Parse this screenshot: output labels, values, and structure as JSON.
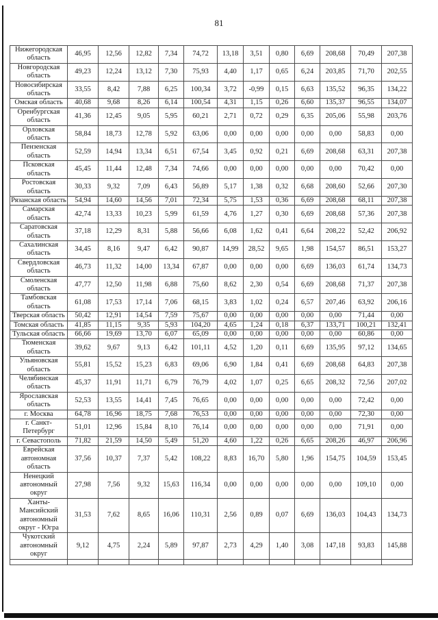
{
  "page": {
    "number": "81"
  },
  "colors": {
    "ink": "#1a1a1a",
    "border": "#4a4a4a"
  },
  "table": {
    "rows": [
      {
        "region": "Нижегородская область",
        "values": [
          "46,95",
          "12,56",
          "12,82",
          "7,34",
          "74,72",
          "13,18",
          "3,51",
          "0,80",
          "6,69",
          "208,68",
          "70,49",
          "207,38"
        ]
      },
      {
        "region": "Новгородская область",
        "values": [
          "49,23",
          "12,24",
          "13,12",
          "7,30",
          "75,93",
          "4,40",
          "1,17",
          "0,65",
          "6,24",
          "203,85",
          "71,70",
          "202,55"
        ]
      },
      {
        "region": "Новосибирская область",
        "values": [
          "33,55",
          "8,42",
          "7,88",
          "6,25",
          "100,34",
          "3,72",
          "-0,99",
          "0,15",
          "6,63",
          "135,52",
          "96,35",
          "134,22"
        ]
      },
      {
        "region": "Омская область",
        "values": [
          "40,68",
          "9,68",
          "8,26",
          "6,14",
          "100,54",
          "4,31",
          "1,15",
          "0,26",
          "6,60",
          "135,37",
          "96,55",
          "134,07"
        ]
      },
      {
        "region": "Оренбургская область",
        "values": [
          "41,36",
          "12,45",
          "9,05",
          "5,95",
          "60,21",
          "2,71",
          "0,72",
          "0,29",
          "6,35",
          "205,06",
          "55,98",
          "203,76"
        ]
      },
      {
        "region": "Орловская область",
        "values": [
          "58,84",
          "18,73",
          "12,78",
          "5,92",
          "63,06",
          "0,00",
          "0,00",
          "0,00",
          "0,00",
          "0,00",
          "58,83",
          "0,00"
        ]
      },
      {
        "region": "Пензенская область",
        "values": [
          "52,59",
          "14,94",
          "13,34",
          "6,51",
          "67,54",
          "3,45",
          "0,92",
          "0,21",
          "6,69",
          "208,68",
          "63,31",
          "207,38"
        ]
      },
      {
        "region": "Псковская область",
        "values": [
          "45,45",
          "11,44",
          "12,48",
          "7,34",
          "74,66",
          "0,00",
          "0,00",
          "0,00",
          "0,00",
          "0,00",
          "70,42",
          "0,00"
        ]
      },
      {
        "region": "Ростовская область",
        "values": [
          "30,33",
          "9,32",
          "7,09",
          "6,43",
          "56,89",
          "5,17",
          "1,38",
          "0,32",
          "6,68",
          "208,60",
          "52,66",
          "207,30"
        ]
      },
      {
        "region": "Рязанская область",
        "values": [
          "54,94",
          "14,60",
          "14,56",
          "7,01",
          "72,34",
          "5,75",
          "1,53",
          "0,36",
          "6,69",
          "208,68",
          "68,11",
          "207,38"
        ]
      },
      {
        "region": "Самарская область",
        "values": [
          "42,74",
          "13,33",
          "10,23",
          "5,99",
          "61,59",
          "4,76",
          "1,27",
          "0,30",
          "6,69",
          "208,68",
          "57,36",
          "207,38"
        ]
      },
      {
        "region": "Саратовская область",
        "values": [
          "37,18",
          "12,29",
          "8,31",
          "5,88",
          "56,66",
          "6,08",
          "1,62",
          "0,41",
          "6,64",
          "208,22",
          "52,42",
          "206,92"
        ]
      },
      {
        "region": "Сахалинская область",
        "values": [
          "34,45",
          "8,16",
          "9,47",
          "6,42",
          "90,87",
          "14,99",
          "28,52",
          "9,65",
          "1,98",
          "154,57",
          "86,51",
          "153,27"
        ]
      },
      {
        "region": "Свердловская область",
        "values": [
          "46,73",
          "11,32",
          "14,00",
          "13,34",
          "67,87",
          "0,00",
          "0,00",
          "0,00",
          "6,69",
          "136,03",
          "61,74",
          "134,73"
        ]
      },
      {
        "region": "Смоленская область",
        "values": [
          "47,77",
          "12,50",
          "11,98",
          "6,88",
          "75,60",
          "8,62",
          "2,30",
          "0,54",
          "6,69",
          "208,68",
          "71,37",
          "207,38"
        ]
      },
      {
        "region": "Тамбовская область",
        "values": [
          "61,08",
          "17,53",
          "17,14",
          "7,06",
          "68,15",
          "3,83",
          "1,02",
          "0,24",
          "6,57",
          "207,46",
          "63,92",
          "206,16"
        ]
      },
      {
        "region": "Тверская область",
        "values": [
          "50,42",
          "12,91",
          "14,54",
          "7,59",
          "75,67",
          "0,00",
          "0,00",
          "0,00",
          "0,00",
          "0,00",
          "71,44",
          "0,00"
        ]
      },
      {
        "region": "Томская область",
        "values": [
          "41,85",
          "11,15",
          "9,35",
          "5,93",
          "104,20",
          "4,65",
          "1,24",
          "0,18",
          "6,37",
          "133,71",
          "100,21",
          "132,41"
        ]
      },
      {
        "region": "Тульская область",
        "values": [
          "66,66",
          "19,69",
          "13,70",
          "6,07",
          "65,09",
          "0,00",
          "0,00",
          "0,00",
          "0,00",
          "0,00",
          "60,86",
          "0,00"
        ]
      },
      {
        "region": "Тюменская область",
        "values": [
          "39,62",
          "9,67",
          "9,13",
          "6,42",
          "101,11",
          "4,52",
          "1,20",
          "0,11",
          "6,69",
          "135,95",
          "97,12",
          "134,65"
        ]
      },
      {
        "region": "Ульяновская область",
        "values": [
          "55,81",
          "15,52",
          "15,23",
          "6,83",
          "69,06",
          "6,90",
          "1,84",
          "0,41",
          "6,69",
          "208,68",
          "64,83",
          "207,38"
        ]
      },
      {
        "region": "Челябинская область",
        "values": [
          "45,37",
          "11,91",
          "11,71",
          "6,79",
          "76,79",
          "4,02",
          "1,07",
          "0,25",
          "6,65",
          "208,32",
          "72,56",
          "207,02"
        ]
      },
      {
        "region": "Ярославская область",
        "values": [
          "52,53",
          "13,55",
          "14,41",
          "7,45",
          "76,65",
          "0,00",
          "0,00",
          "0,00",
          "0,00",
          "0,00",
          "72,42",
          "0,00"
        ]
      },
      {
        "region": "г. Москва",
        "values": [
          "64,78",
          "16,96",
          "18,75",
          "7,68",
          "76,53",
          "0,00",
          "0,00",
          "0,00",
          "0,00",
          "0,00",
          "72,30",
          "0,00"
        ]
      },
      {
        "region": "г. Санкт-Петербург",
        "values": [
          "51,01",
          "12,96",
          "15,84",
          "8,10",
          "76,14",
          "0,00",
          "0,00",
          "0,00",
          "0,00",
          "0,00",
          "71,91",
          "0,00"
        ]
      },
      {
        "region": "г. Севастополь",
        "values": [
          "71,82",
          "21,59",
          "14,50",
          "5,49",
          "51,20",
          "4,60",
          "1,22",
          "0,26",
          "6,65",
          "208,26",
          "46,97",
          "206,96"
        ]
      },
      {
        "region": "Еврейская автономная область",
        "values": [
          "37,56",
          "10,37",
          "7,37",
          "5,42",
          "108,22",
          "8,83",
          "16,70",
          "5,80",
          "1,96",
          "154,75",
          "104,59",
          "153,45"
        ]
      },
      {
        "region": "Ненецкий автономный округ",
        "values": [
          "27,98",
          "7,56",
          "9,32",
          "15,63",
          "116,34",
          "0,00",
          "0,00",
          "0,00",
          "0,00",
          "0,00",
          "109,10",
          "0,00"
        ]
      },
      {
        "region": "Ханты-Мансийский автономный округ - Югра",
        "values": [
          "31,53",
          "7,62",
          "8,65",
          "16,06",
          "110,31",
          "2,56",
          "0,89",
          "0,07",
          "6,69",
          "136,03",
          "104,43",
          "134,73"
        ]
      },
      {
        "region": "Чукотский автономный округ",
        "values": [
          "9,12",
          "4,75",
          "2,24",
          "5,89",
          "97,87",
          "2,73",
          "4,29",
          "1,40",
          "3,08",
          "147,18",
          "93,83",
          "145,88"
        ]
      },
      {
        "region": "",
        "values": [
          "",
          "",
          "",
          "",
          "",
          "",
          "",
          "",
          "",
          "",
          "",
          ""
        ]
      }
    ]
  }
}
